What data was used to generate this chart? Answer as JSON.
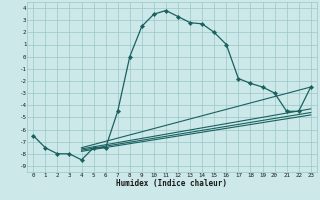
{
  "xlabel": "Humidex (Indice chaleur)",
  "bg_color": "#cce8e8",
  "grid_color": "#9cc8c8",
  "line_color": "#1a6060",
  "xlim": [
    -0.5,
    23.5
  ],
  "ylim": [
    -9.5,
    4.5
  ],
  "xticks": [
    0,
    1,
    2,
    3,
    4,
    5,
    6,
    7,
    8,
    9,
    10,
    11,
    12,
    13,
    14,
    15,
    16,
    17,
    18,
    19,
    20,
    21,
    22,
    23
  ],
  "yticks": [
    -9,
    -8,
    -7,
    -6,
    -5,
    -4,
    -3,
    -2,
    -1,
    0,
    1,
    2,
    3,
    4
  ],
  "main_series": {
    "x": [
      0,
      1,
      2,
      3,
      4,
      5,
      6,
      7,
      8,
      9,
      10,
      11,
      12,
      13,
      14,
      15,
      16,
      17,
      18,
      19,
      20,
      21,
      22,
      23
    ],
    "y": [
      -6.5,
      -7.5,
      -8.0,
      -8.0,
      -8.5,
      -7.5,
      -7.5,
      -4.5,
      0.0,
      2.5,
      3.5,
      3.8,
      3.3,
      2.8,
      2.7,
      2.0,
      1.0,
      -1.8,
      -2.2,
      -2.5,
      -3.0,
      -4.5,
      -4.5,
      -2.5
    ]
  },
  "linear_series": [
    {
      "x": [
        4,
        23
      ],
      "y": [
        -7.5,
        -2.5
      ]
    },
    {
      "x": [
        4,
        23
      ],
      "y": [
        -7.8,
        -4.8
      ]
    },
    {
      "x": [
        4,
        23
      ],
      "y": [
        -7.6,
        -4.3
      ]
    },
    {
      "x": [
        4,
        23
      ],
      "y": [
        -7.7,
        -4.6
      ]
    }
  ]
}
